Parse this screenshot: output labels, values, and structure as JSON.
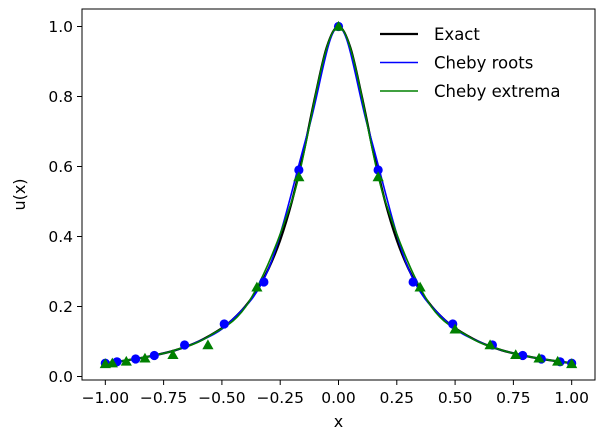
{
  "chart_data": {
    "type": "line",
    "xlabel": "x",
    "ylabel": "u(x)",
    "xlim": [
      -1.1,
      1.1
    ],
    "ylim": [
      -0.01,
      1.05
    ],
    "xticks": [
      -1.0,
      -0.75,
      -0.5,
      -0.25,
      0.0,
      0.25,
      0.5,
      0.75,
      1.0
    ],
    "xtick_labels": [
      "−1.00",
      "−0.75",
      "−0.50",
      "−0.25",
      "0.00",
      "0.25",
      "0.50",
      "0.75",
      "1.00"
    ],
    "yticks": [
      0.0,
      0.2,
      0.4,
      0.6,
      0.8,
      1.0
    ],
    "ytick_labels": [
      "0.0",
      "0.2",
      "0.4",
      "0.6",
      "0.8",
      "1.0"
    ],
    "grid": false,
    "legend_position": "top-right",
    "series": [
      {
        "name": "Exact",
        "color": "#000000",
        "marker": "none",
        "x": [
          -1.0,
          -0.9,
          -0.8,
          -0.7,
          -0.6,
          -0.5,
          -0.45,
          -0.4,
          -0.35,
          -0.3,
          -0.25,
          -0.2,
          -0.15,
          -0.1,
          -0.05,
          0.0,
          0.05,
          0.1,
          0.15,
          0.2,
          0.25,
          0.3,
          0.35,
          0.4,
          0.45,
          0.5,
          0.6,
          0.7,
          0.8,
          0.9,
          1.0
        ],
        "y": [
          0.038,
          0.047,
          0.059,
          0.075,
          0.1,
          0.138,
          0.165,
          0.2,
          0.246,
          0.308,
          0.39,
          0.5,
          0.64,
          0.8,
          0.941,
          1.0,
          0.941,
          0.8,
          0.64,
          0.5,
          0.39,
          0.308,
          0.246,
          0.2,
          0.165,
          0.138,
          0.1,
          0.075,
          0.059,
          0.047,
          0.038
        ]
      },
      {
        "name": "Cheby roots",
        "color": "#0000ff",
        "marker": "circle",
        "x": [
          -0.9949,
          -0.9541,
          -0.8752,
          -0.763,
          -0.6241,
          -0.4666,
          -0.2991,
          -0.131,
          0.0,
          0.131,
          0.2991,
          0.4666,
          0.6241,
          0.763,
          0.8752,
          0.9541,
          0.9949
        ],
        "y": [
          0.039,
          0.042,
          0.05,
          0.064,
          0.093,
          0.155,
          0.309,
          0.7,
          1.0,
          0.7,
          0.309,
          0.155,
          0.093,
          0.064,
          0.05,
          0.042,
          0.039
        ],
        "points_x": [
          -1.0,
          -0.95,
          -0.87,
          -0.79,
          -0.66,
          -0.49,
          -0.32,
          -0.17,
          0.0,
          0.17,
          0.32,
          0.49,
          0.66,
          0.79,
          0.87,
          0.95,
          1.0
        ],
        "points_y": [
          0.038,
          0.042,
          0.05,
          0.06,
          0.09,
          0.15,
          0.27,
          0.59,
          1.0,
          0.59,
          0.27,
          0.15,
          0.09,
          0.06,
          0.05,
          0.042,
          0.038
        ]
      },
      {
        "name": "Cheby extrema",
        "color": "#008000",
        "marker": "triangle",
        "x": [
          -1.0,
          -0.9808,
          -0.9239,
          -0.8315,
          -0.7071,
          -0.5556,
          -0.3827,
          -0.1951,
          0.0,
          0.1951,
          0.3827,
          0.5556,
          0.7071,
          0.8315,
          0.9239,
          0.9808,
          1.0
        ],
        "y": [
          0.038,
          0.04,
          0.045,
          0.055,
          0.074,
          0.115,
          0.215,
          0.512,
          1.0,
          0.512,
          0.215,
          0.115,
          0.074,
          0.055,
          0.045,
          0.04,
          0.038
        ],
        "points_x": [
          -1.0,
          -0.97,
          -0.91,
          -0.83,
          -0.71,
          -0.56,
          -0.35,
          -0.17,
          0.0,
          0.17,
          0.35,
          0.5,
          0.65,
          0.76,
          0.86,
          0.94,
          1.0
        ],
        "points_y": [
          0.036,
          0.038,
          0.043,
          0.052,
          0.062,
          0.09,
          0.255,
          0.57,
          1.0,
          0.57,
          0.255,
          0.135,
          0.09,
          0.062,
          0.052,
          0.043,
          0.036
        ]
      }
    ]
  }
}
